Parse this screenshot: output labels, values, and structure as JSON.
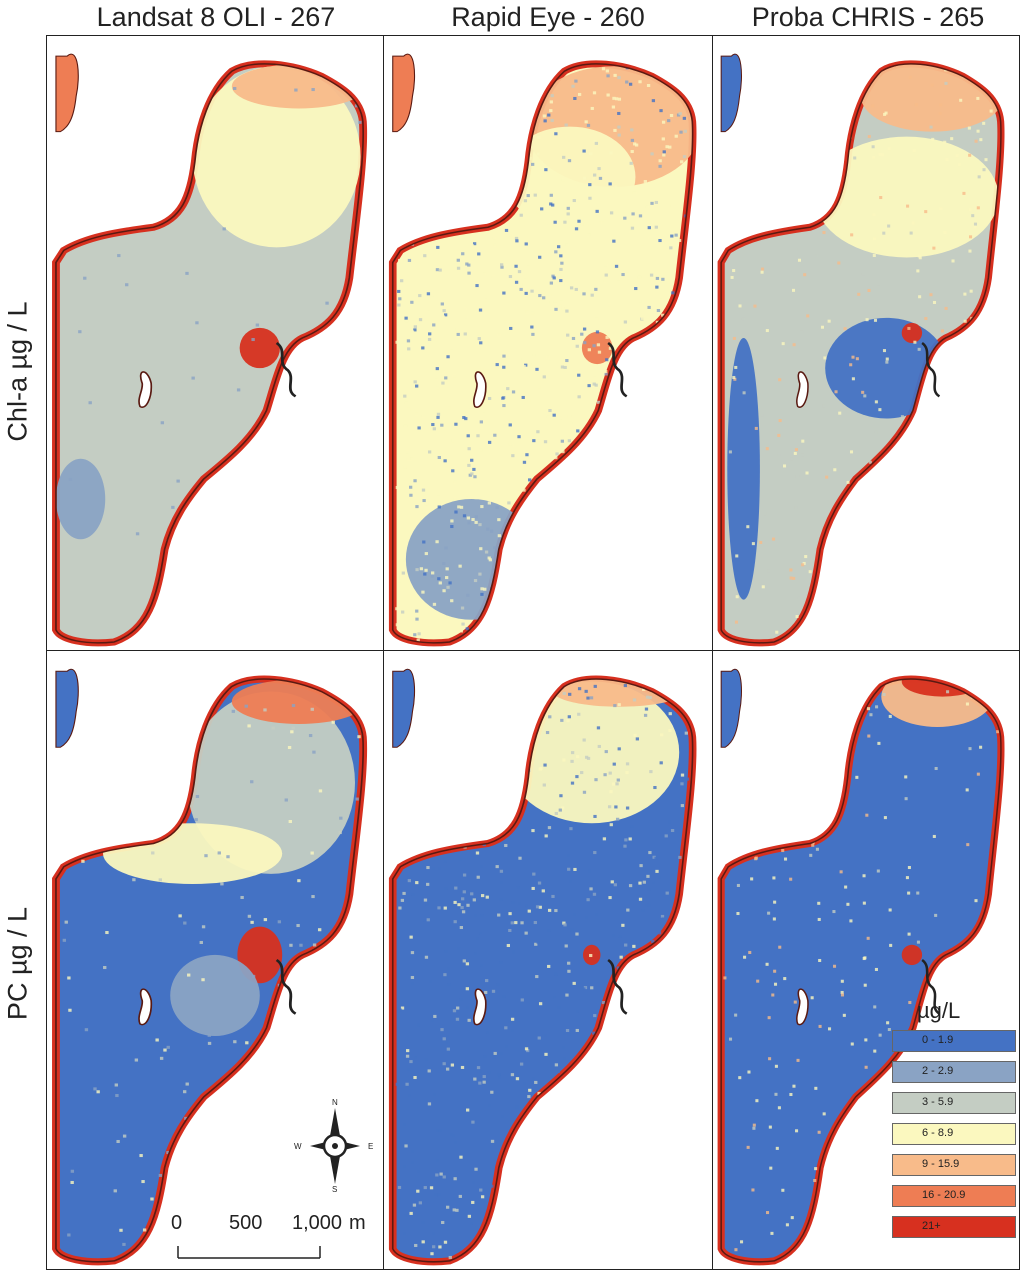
{
  "columns": [
    {
      "title": "Landsat 8 OLI - 267"
    },
    {
      "title": "Rapid Eye - 260"
    },
    {
      "title": "Proba CHRIS - 265"
    }
  ],
  "rows": [
    {
      "label": "Chl-a µg / L"
    },
    {
      "label": "PC µg / L"
    }
  ],
  "legend": {
    "title": "µg/L",
    "classes": [
      {
        "label": "0 - 1.9",
        "color": "#4472c4"
      },
      {
        "label": "2 - 2.9",
        "color": "#8aa3c4"
      },
      {
        "label": "3 - 5.9",
        "color": "#c4cdc3"
      },
      {
        "label": "6 - 8.9",
        "color": "#fbf8bf"
      },
      {
        "label": "9 - 15.9",
        "color": "#f8bb8a"
      },
      {
        "label": "16 - 20.9",
        "color": "#ee7d54"
      },
      {
        "label": "21+",
        "color": "#d7301f"
      }
    ]
  },
  "compass": {
    "n": "N",
    "s": "S",
    "e": "E",
    "w": "W"
  },
  "scale_bar": {
    "ticks": [
      "0",
      "500",
      "1,000"
    ],
    "unit": "m"
  }
}
